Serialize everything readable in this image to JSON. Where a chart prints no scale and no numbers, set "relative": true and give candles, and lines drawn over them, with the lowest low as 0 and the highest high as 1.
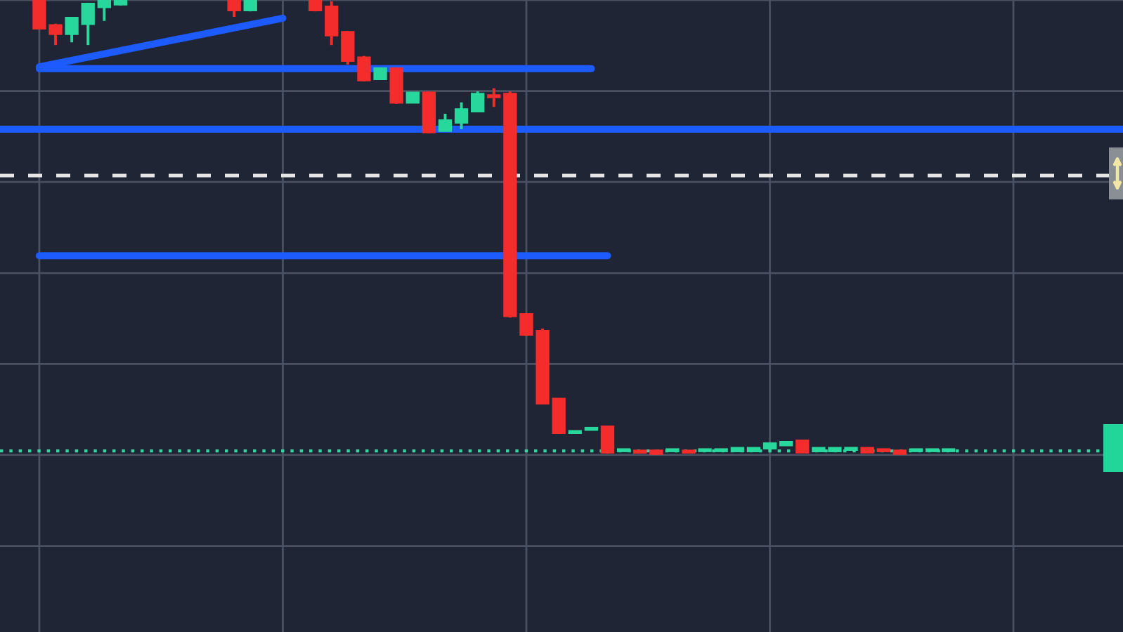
{
  "chart_data": {
    "type": "candlestick",
    "relative": true,
    "categories": [
      null,
      null,
      null,
      null,
      null,
      null,
      null,
      null,
      null,
      null,
      null,
      null,
      null,
      null,
      null,
      null,
      null,
      null,
      null,
      null,
      null,
      null,
      null,
      null,
      null,
      null,
      null,
      null,
      null,
      null,
      null,
      null,
      null,
      null,
      null,
      null,
      null,
      null,
      null,
      null,
      null,
      null,
      null,
      null,
      null,
      null,
      null,
      null,
      null,
      null,
      null,
      null,
      null,
      null,
      null,
      null,
      null
    ],
    "series": [
      {
        "type": "candlestick",
        "ohlc": [
          [
            1,
            1,
            0.935,
            0.938
          ],
          [
            0.944,
            0.948,
            0.901,
            0.926
          ],
          [
            0.926,
            0.963,
            0.907,
            0.96
          ],
          [
            0.948,
            0.994,
            0.901,
            0.991
          ],
          [
            0.985,
            1,
            0.954,
            1
          ],
          [
            0.991,
            1,
            0.988,
            1
          ],
          null,
          null,
          null,
          null,
          null,
          null,
          [
            1,
            1,
            0.963,
            0.978
          ],
          [
            0.978,
            1,
            0.975,
            1
          ],
          null,
          null,
          null,
          [
            1,
            1,
            0.975,
            0.978
          ],
          [
            0.985,
            0.997,
            0.901,
            0.923
          ],
          [
            0.929,
            0.932,
            0.858,
            0.867
          ],
          [
            0.873,
            0.877,
            0.821,
            0.824
          ],
          [
            0.827,
            0.852,
            0.824,
            0.849
          ],
          [
            0.849,
            0.852,
            0.772,
            0.775
          ],
          [
            0.775,
            0.796,
            0.775,
            0.796
          ],
          [
            0.796,
            0.799,
            0.707,
            0.71
          ],
          [
            0.713,
            0.75,
            0.713,
            0.735
          ],
          [
            0.731,
            0.775,
            0.716,
            0.759
          ],
          [
            0.756,
            0.799,
            0.756,
            0.793
          ],
          [
            0.79,
            0.806,
            0.765,
            0.787
          ],
          [
            0.793,
            0.799,
            0.302,
            0.306
          ],
          [
            0.309,
            0.309,
            0.265,
            0.265
          ],
          [
            0.272,
            0.278,
            0.114,
            0.114
          ],
          [
            0.123,
            0.123,
            0.049,
            0.049
          ],
          [
            0.049,
            0.052,
            0.049,
            0.052
          ],
          [
            0.056,
            0.059,
            0.056,
            0.059
          ],
          [
            0.062,
            0.062,
            0.003,
            0.006
          ],
          [
            0.009,
            0.012,
            0.009,
            0.012
          ],
          [
            0.009,
            0.009,
            0.006,
            0.006
          ],
          [
            0.009,
            0.012,
            0,
            0.003
          ],
          [
            0.009,
            0.012,
            0.009,
            0.012
          ],
          [
            0.009,
            0.009,
            0.006,
            0.006
          ],
          [
            0.009,
            0.012,
            0.009,
            0.012
          ],
          [
            0.009,
            0.012,
            0.009,
            0.012
          ],
          [
            0.009,
            0.015,
            0.009,
            0.015
          ],
          [
            0.009,
            0.015,
            0.009,
            0.015
          ],
          [
            0.015,
            0.025,
            0.015,
            0.025
          ],
          [
            0.022,
            0.028,
            0.022,
            0.028
          ],
          [
            0.031,
            0.031,
            0.006,
            0.006
          ],
          [
            0.009,
            0.015,
            0.009,
            0.015
          ],
          [
            0.009,
            0.015,
            0.009,
            0.015
          ],
          [
            0.012,
            0.015,
            0.012,
            0.015
          ],
          [
            0.015,
            0.015,
            0.006,
            0.006
          ],
          [
            0.012,
            0.012,
            0.009,
            0.009
          ],
          [
            0.009,
            0.009,
            0,
            0.003
          ],
          [
            0.009,
            0.012,
            0.009,
            0.012
          ],
          [
            0.009,
            0.012,
            0.009,
            0.012
          ],
          [
            0.009,
            0.012,
            0.009,
            0.012
          ]
        ],
        "colors": [
          "#f52c2c",
          "#f52c2c",
          "#28d79c",
          "#28d79c",
          "#28d79c",
          "#28d79c",
          null,
          null,
          null,
          null,
          null,
          null,
          "#f52c2c",
          "#28d79c",
          null,
          null,
          null,
          "#f52c2c",
          "#f52c2c",
          "#f52c2c",
          "#f52c2c",
          "#28d79c",
          "#f52c2c",
          "#28d79c",
          "#f52c2c",
          "#28d79c",
          "#28d79c",
          "#28d79c",
          "#f52c2c",
          "#f52c2c",
          "#f52c2c",
          "#f52c2c",
          "#f52c2c",
          "#28d79c",
          "#28d79c",
          "#f52c2c",
          "#28d79c",
          "#f52c2c",
          "#f52c2c",
          "#28d79c",
          "#f52c2c",
          "#28d79c",
          "#28d79c",
          "#28d79c",
          "#28d79c",
          "#28d79c",
          "#28d79c",
          "#f52c2c",
          "#28d79c",
          "#28d79c",
          "#28d79c",
          "#f52c2c",
          "#f52c2c",
          "#f52c2c",
          "#28d79c",
          "#28d79c",
          "#28d79c"
        ]
      },
      {
        "type": "line",
        "color": "#1d5bff",
        "values": [
          0.849,
          null,
          null,
          null,
          null,
          null,
          null,
          null,
          null,
          null,
          null,
          null,
          null,
          null,
          null,
          null,
          null,
          null,
          null,
          null,
          null,
          null,
          null,
          null,
          null,
          null,
          null,
          null,
          null,
          null,
          null,
          null,
          null,
          null,
          0.849,
          null,
          null,
          null,
          null,
          null,
          null,
          null,
          null,
          null,
          null,
          null,
          null,
          null,
          null,
          null,
          null,
          null,
          null,
          null,
          null,
          null,
          null
        ]
      },
      {
        "type": "line",
        "color": "#1d5bff",
        "values": [
          0.438,
          null,
          null,
          null,
          null,
          null,
          null,
          null,
          null,
          null,
          null,
          null,
          null,
          null,
          null,
          null,
          null,
          null,
          null,
          null,
          null,
          null,
          null,
          null,
          null,
          null,
          null,
          null,
          null,
          null,
          null,
          null,
          null,
          null,
          null,
          0.438,
          null,
          null,
          null,
          null,
          null,
          null,
          null,
          null,
          null,
          null,
          null,
          null,
          null,
          null,
          null,
          null,
          null,
          null,
          null,
          null,
          null
        ]
      },
      {
        "type": "line",
        "color": "#1d5bff",
        "values": [
          0.853,
          null,
          null,
          null,
          null,
          null,
          null,
          null,
          null,
          null,
          null,
          null,
          null,
          null,
          null,
          0.96,
          null,
          null,
          null,
          null,
          null,
          null,
          null,
          null,
          null,
          null,
          null,
          null,
          null,
          null,
          null,
          null,
          null,
          null,
          null,
          null,
          null,
          null,
          null,
          null,
          null,
          null,
          null,
          null,
          null,
          null,
          null,
          null,
          null,
          null,
          null,
          null,
          null,
          null,
          null,
          null,
          null
        ]
      }
    ],
    "ref_lines": [
      {
        "axis": "y",
        "value": 0.716,
        "color": "#1d5bff",
        "line_style": "solid"
      },
      {
        "axis": "y",
        "value": 0.614,
        "color": "#e6e6e6",
        "line_style": "dashed"
      },
      {
        "axis": "y",
        "value": 0.009,
        "color": "#35d6a2",
        "line_style": "dotted"
      }
    ],
    "grid": true,
    "tick_labels": false
  }
}
